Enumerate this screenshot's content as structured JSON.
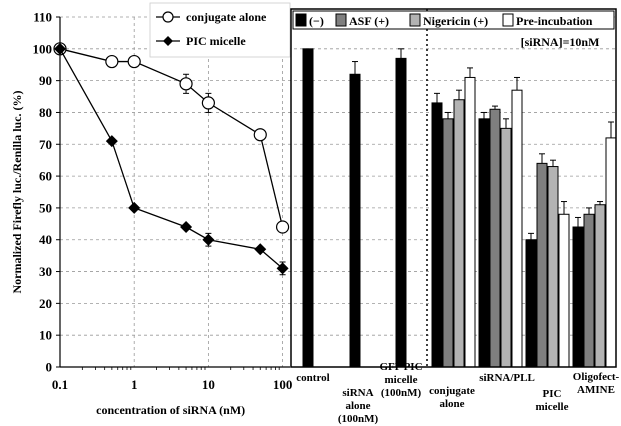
{
  "chart_data": [
    {
      "type": "line",
      "xscale": "log",
      "xlim": [
        0.1,
        100
      ],
      "ylim": [
        0,
        110
      ],
      "xticks": [
        "0.1",
        "1",
        "10",
        "100"
      ],
      "yticks": [
        "0",
        "10",
        "20",
        "30",
        "40",
        "50",
        "60",
        "70",
        "80",
        "90",
        "100",
        "110"
      ],
      "xlabel": "concentration of siRNA (nM)",
      "ylabel": "Normalized Firefly luc./Renilla luc. (%)",
      "grid": "horizontal dashed",
      "legend_position": "top-right",
      "series": [
        {
          "name": "conjugate alone",
          "marker": "open-circle",
          "x": [
            0.1,
            0.5,
            1,
            5,
            10,
            50,
            100
          ],
          "y": [
            100,
            96,
            96,
            89,
            83,
            73,
            44
          ],
          "err": [
            0,
            0,
            0,
            3,
            3,
            0,
            0
          ]
        },
        {
          "name": "PIC micelle",
          "marker": "filled-diamond",
          "x": [
            0.1,
            0.5,
            1,
            5,
            10,
            50,
            100
          ],
          "y": [
            100,
            71,
            50,
            44,
            40,
            37,
            31
          ],
          "err": [
            0,
            0,
            0,
            0,
            2,
            0,
            2
          ]
        }
      ]
    },
    {
      "type": "bar",
      "ylim": [
        0,
        110
      ],
      "annotation": "[siRNA]=10nM",
      "legend_position": "top",
      "series_names": [
        "(−)",
        "ASF (+)",
        "Nigericin (+)",
        "Pre-incubation"
      ],
      "series_colors": [
        "#000000",
        "#7f7f7f",
        "#b3b3b3",
        "#ffffff"
      ],
      "groups": [
        {
          "label": [
            "control"
          ],
          "values": [
            {
              "series": 0,
              "value": 100,
              "err": 0
            }
          ]
        },
        {
          "label": [
            "siRNA",
            "alone",
            "(100nM)"
          ],
          "values": [
            {
              "series": 0,
              "value": 92,
              "err": 4
            }
          ]
        },
        {
          "label": [
            "GFP PIC",
            "micelle",
            "(100nM)"
          ],
          "values": [
            {
              "series": 0,
              "value": 97,
              "err": 3
            }
          ]
        },
        {
          "label": [
            "conjugate",
            "alone"
          ],
          "values": [
            {
              "series": 0,
              "value": 83,
              "err": 3
            },
            {
              "series": 1,
              "value": 78,
              "err": 2
            },
            {
              "series": 2,
              "value": 84,
              "err": 3
            },
            {
              "series": 3,
              "value": 91,
              "err": 3
            }
          ]
        },
        {
          "label": [
            "siRNA/PLL"
          ],
          "values": [
            {
              "series": 0,
              "value": 78,
              "err": 2
            },
            {
              "series": 1,
              "value": 81,
              "err": 1
            },
            {
              "series": 2,
              "value": 75,
              "err": 3
            },
            {
              "series": 3,
              "value": 87,
              "err": 4
            }
          ]
        },
        {
          "label": [
            "PIC",
            "micelle"
          ],
          "values": [
            {
              "series": 0,
              "value": 40,
              "err": 2
            },
            {
              "series": 1,
              "value": 64,
              "err": 3
            },
            {
              "series": 2,
              "value": 63,
              "err": 2
            },
            {
              "series": 3,
              "value": 48,
              "err": 4
            }
          ]
        },
        {
          "label": [
            "Oligofect-",
            "AMINE"
          ],
          "values": [
            {
              "series": 0,
              "value": 44,
              "err": 3
            },
            {
              "series": 1,
              "value": 48,
              "err": 2
            },
            {
              "series": 2,
              "value": 51,
              "err": 1
            },
            {
              "series": 3,
              "value": 72,
              "err": 5
            }
          ]
        }
      ]
    }
  ]
}
